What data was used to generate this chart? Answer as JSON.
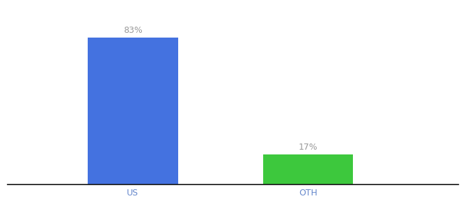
{
  "categories": [
    "US",
    "OTH"
  ],
  "values": [
    83,
    17
  ],
  "bar_colors": [
    "#4472e0",
    "#3dc83d"
  ],
  "labels": [
    "83%",
    "17%"
  ],
  "background_color": "#ffffff",
  "label_color": "#999999",
  "label_fontsize": 9,
  "tick_fontsize": 9,
  "tick_color": "#6688cc",
  "bar_width": 0.18,
  "x_positions": [
    0.3,
    0.65
  ],
  "xlim": [
    0.05,
    0.95
  ],
  "ylim": [
    0,
    100
  ]
}
